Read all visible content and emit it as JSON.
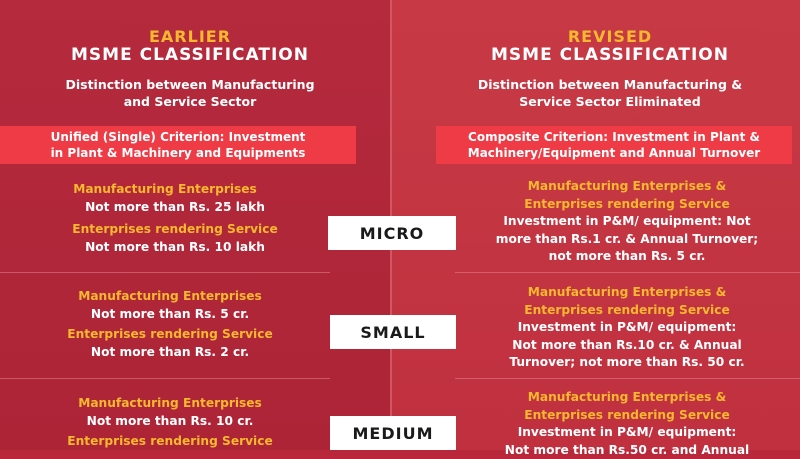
{
  "earlier": {
    "label": "EARLIER",
    "title": "MSME CLASSIFICATION",
    "distinction": [
      "Distinction between Manufacturing",
      "and Service Sector"
    ],
    "criterion": [
      "Unified (Single) Criterion: Investment",
      "in Plant & Machinery and Equipments"
    ],
    "micro": {
      "mfg_label": "Manufacturing Enterprises",
      "mfg_value": "Not more than Rs. 25 lakh",
      "svc_label": "Enterprises rendering Service",
      "svc_value": "Not more than Rs. 10 lakh"
    },
    "small": {
      "mfg_label": "Manufacturing Enterprises",
      "mfg_value": "Not more than Rs. 5 cr.",
      "svc_label": "Enterprises rendering Service",
      "svc_value": "Not more than Rs. 2 cr."
    },
    "medium": {
      "mfg_label": "Manufacturing Enterprises",
      "mfg_value": "Not more than Rs. 10 cr.",
      "svc_label": "Enterprises rendering Service"
    }
  },
  "revised": {
    "label": "REVISED",
    "title": "MSME CLASSIFICATION",
    "distinction": [
      "Distinction between Manufacturing &",
      "Service Sector Eliminated"
    ],
    "criterion": [
      "Composite Criterion: Investment in Plant &",
      "Machinery/Equipment and Annual Turnover"
    ],
    "micro": {
      "label": [
        "Manufacturing Enterprises &",
        "Enterprises rendering Service"
      ],
      "value": [
        "Investment in P&M/ equipment:  Not",
        "more than Rs.1 cr. & Annual Turnover;",
        "not more than Rs. 5 cr."
      ]
    },
    "small": {
      "label": [
        "Manufacturing Enterprises &",
        "Enterprises rendering Service"
      ],
      "value": [
        "Investment in P&M/ equipment:",
        "Not more than Rs.10 cr. & Annual",
        "Turnover; not more than Rs. 50 cr."
      ]
    },
    "medium": {
      "label": [
        "Manufacturing Enterprises &",
        "Enterprises rendering Service"
      ],
      "value": [
        "Investment in P&M/ equipment:",
        "Not more than Rs.50 cr. and Annual"
      ]
    }
  },
  "categories": {
    "micro": "MICRO",
    "small": "SMALL",
    "medium": "MEDIUM"
  }
}
